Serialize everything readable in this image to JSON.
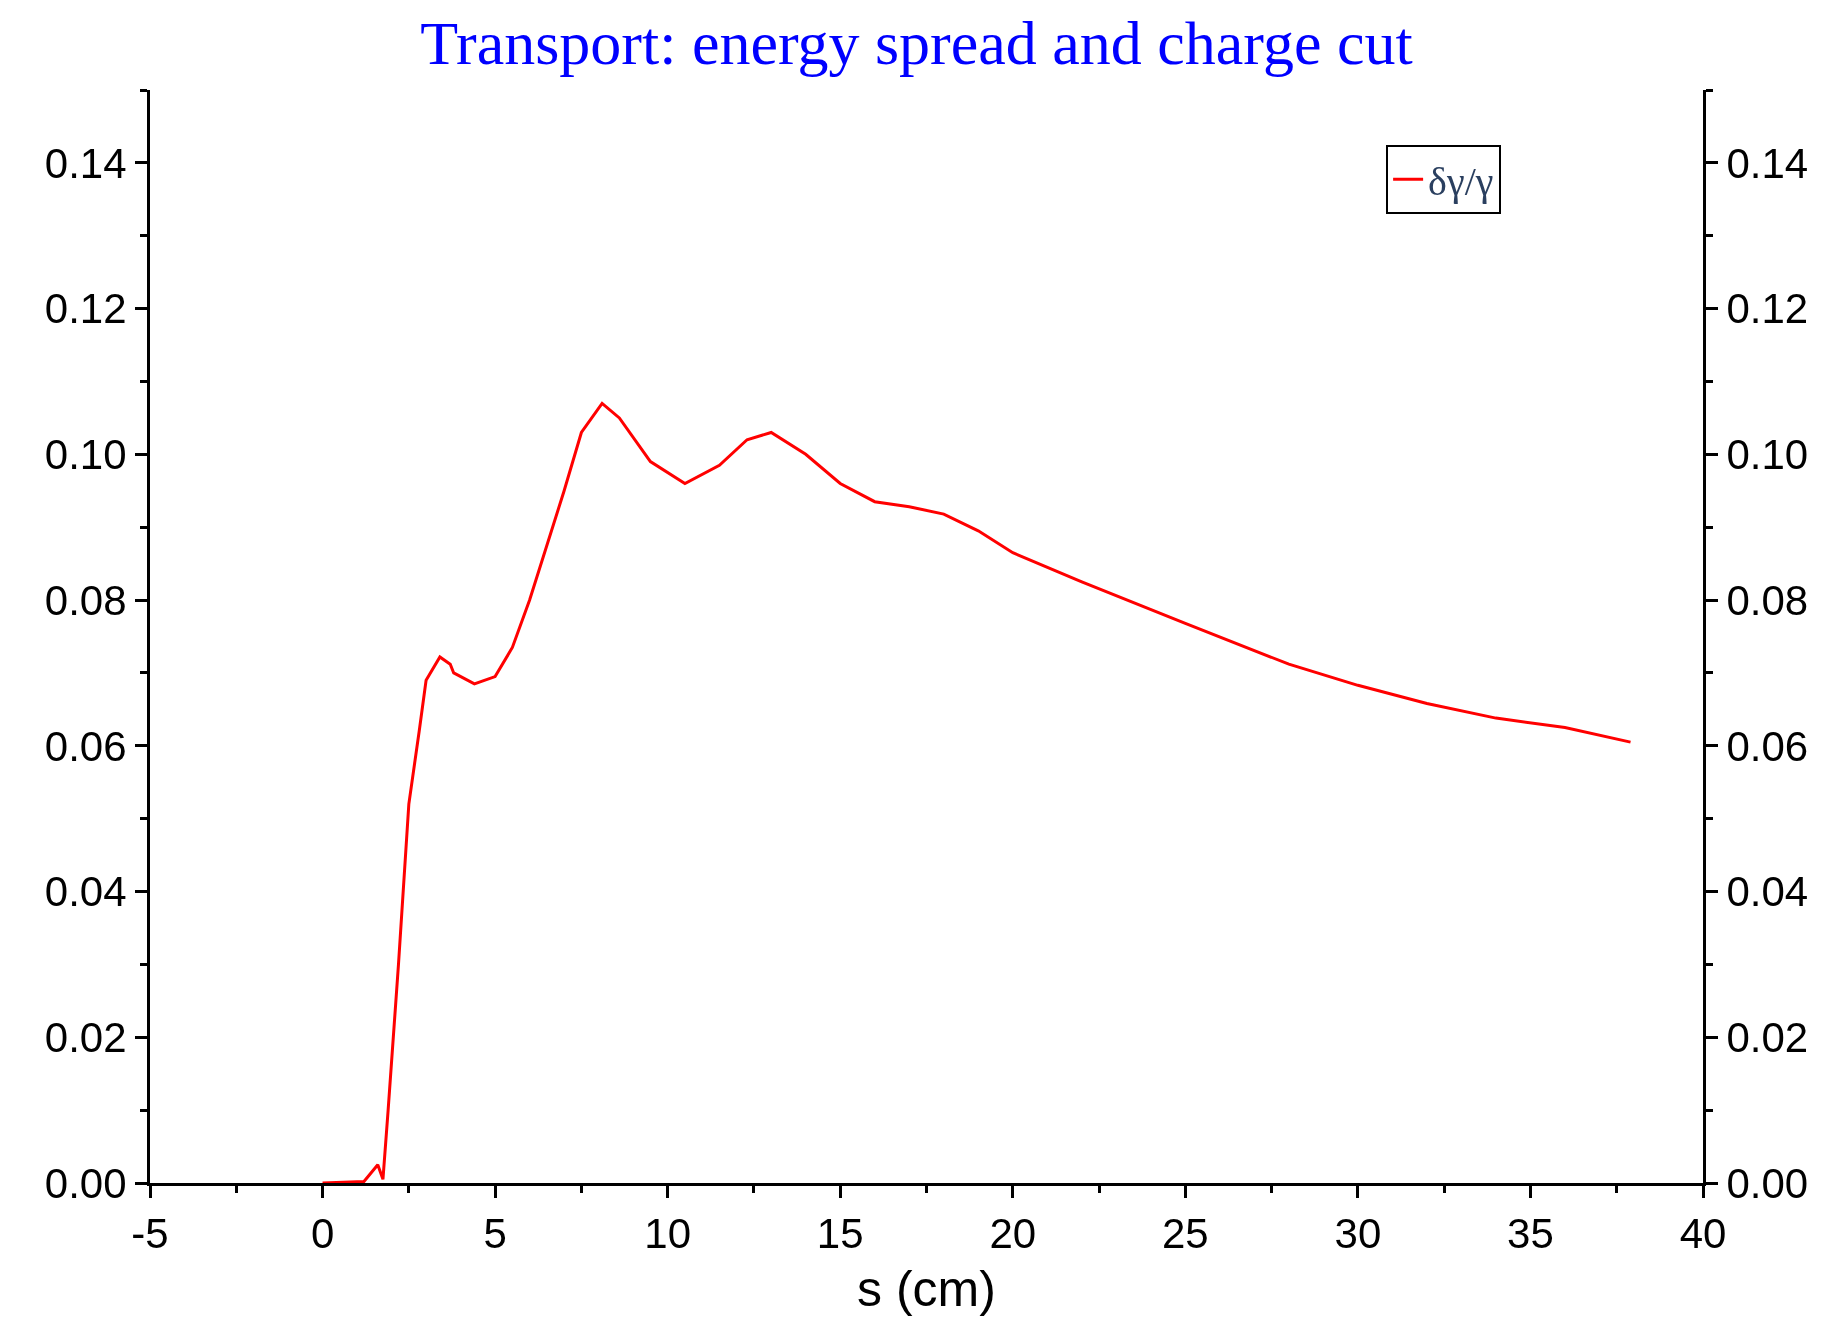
{
  "chart_data": {
    "type": "line",
    "title": "Transport: energy spread and charge cut",
    "xlabel": "s (cm)",
    "series": [
      {
        "name": "δγ/γ",
        "color": "#ff0000",
        "x": [
          0,
          1.2,
          1.6,
          1.75,
          1.9,
          2.2,
          2.5,
          2.8,
          3.0,
          3.4,
          3.7,
          3.8,
          4.4,
          5,
          5.5,
          6,
          7,
          7.5,
          8.1,
          8.6,
          9.5,
          10.5,
          11.5,
          12.3,
          13,
          14,
          15,
          16,
          17,
          18,
          19,
          20,
          22,
          25,
          28,
          30,
          32,
          34,
          36,
          37.9
        ],
        "values": [
          0,
          0.0002,
          0.0025,
          0.0005,
          0.01,
          0.03,
          0.052,
          0.062,
          0.069,
          0.0722,
          0.0712,
          0.07,
          0.0685,
          0.0695,
          0.0735,
          0.08,
          0.095,
          0.103,
          0.107,
          0.105,
          0.099,
          0.096,
          0.0985,
          0.102,
          0.103,
          0.1,
          0.096,
          0.0935,
          0.0928,
          0.0918,
          0.0895,
          0.0865,
          0.0825,
          0.0768,
          0.0712,
          0.0683,
          0.0658,
          0.0638,
          0.0625,
          0.0605
        ]
      }
    ],
    "xlim": [
      -5,
      40
    ],
    "xticks": [
      -5,
      0,
      5,
      10,
      15,
      20,
      25,
      30,
      35,
      40
    ],
    "ylim": [
      0,
      0.15
    ],
    "yticks": [
      {
        "value": 0,
        "label": "0.00"
      },
      {
        "value": 0.02,
        "label": "0.02"
      },
      {
        "value": 0.04,
        "label": "0.04"
      },
      {
        "value": 0.06,
        "label": "0.06"
      },
      {
        "value": 0.08,
        "label": "0.08"
      },
      {
        "value": 0.1,
        "label": "0.10"
      },
      {
        "value": 0.12,
        "label": "0.12"
      },
      {
        "value": 0.14,
        "label": "0.14"
      }
    ],
    "y2lim": [
      0,
      0.15
    ],
    "y2ticks": [
      {
        "value": 0,
        "label": "0.00"
      },
      {
        "value": 0.02,
        "label": "0.02"
      },
      {
        "value": 0.04,
        "label": "0.04"
      },
      {
        "value": 0.06,
        "label": "0.06"
      },
      {
        "value": 0.08,
        "label": "0.08"
      },
      {
        "value": 0.1,
        "label": "0.10"
      },
      {
        "value": 0.12,
        "label": "0.12"
      },
      {
        "value": 0.14,
        "label": "0.14"
      }
    ],
    "legend": "top right",
    "marker": "none",
    "line_style": "solid"
  }
}
